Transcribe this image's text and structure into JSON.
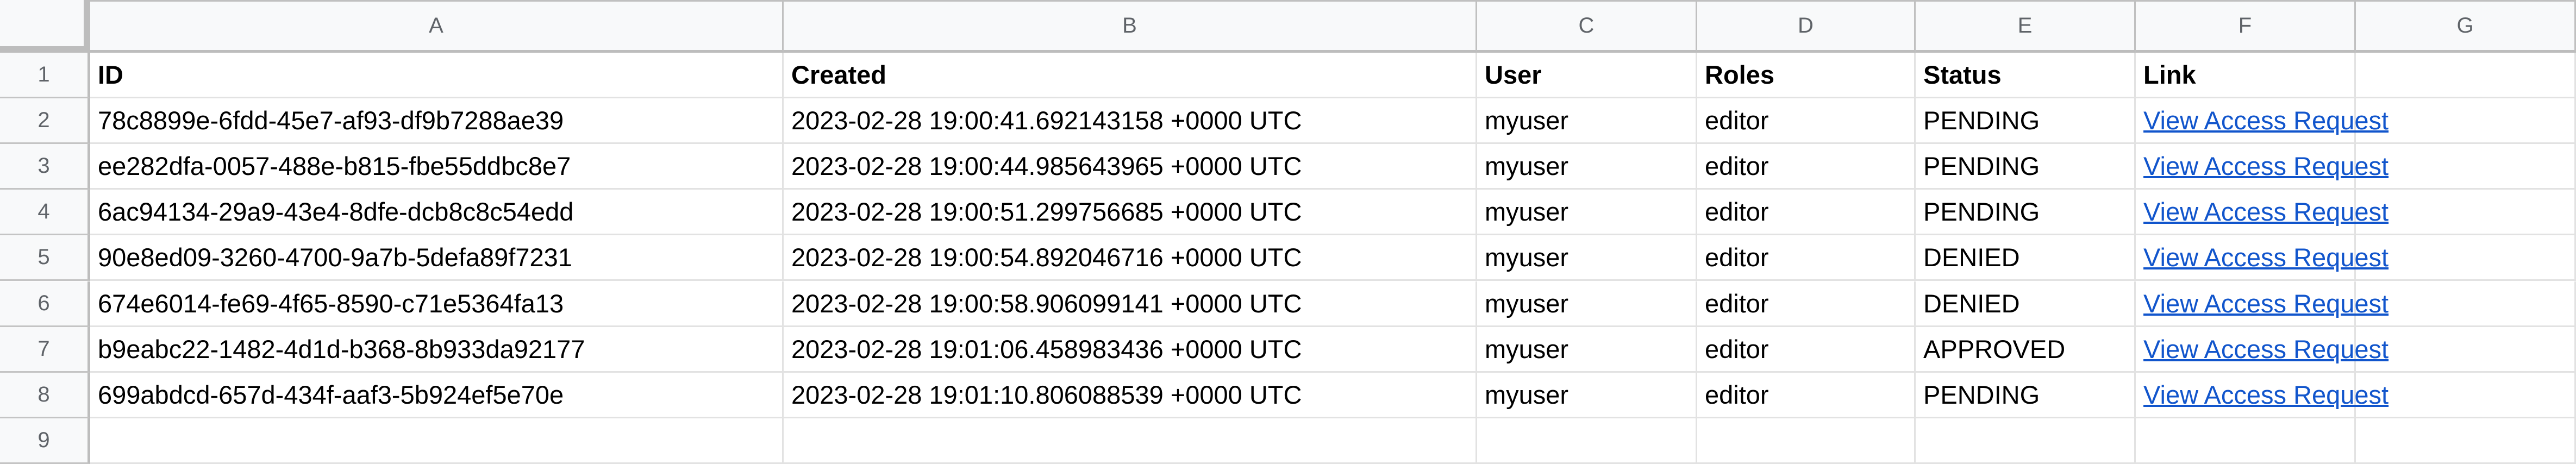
{
  "column_letters": [
    "A",
    "B",
    "C",
    "D",
    "E",
    "F",
    "G"
  ],
  "row_numbers": [
    "1",
    "2",
    "3",
    "4",
    "5",
    "6",
    "7",
    "8",
    "9"
  ],
  "headers": [
    "ID",
    "Created",
    "User",
    "Roles",
    "Status",
    "Link",
    ""
  ],
  "rows": [
    [
      "78c8899e-6fdd-45e7-af93-df9b7288ae39",
      "2023-02-28 19:00:41.692143158 +0000 UTC",
      "myuser",
      "editor",
      "PENDING",
      "View Access Request"
    ],
    [
      "ee282dfa-0057-488e-b815-fbe55ddbc8e7",
      "2023-02-28 19:00:44.985643965 +0000 UTC",
      "myuser",
      "editor",
      "PENDING",
      "View Access Request"
    ],
    [
      "6ac94134-29a9-43e4-8dfe-dcb8c8c54edd",
      "2023-02-28 19:00:51.299756685 +0000 UTC",
      "myuser",
      "editor",
      "PENDING",
      "View Access Request"
    ],
    [
      "90e8ed09-3260-4700-9a7b-5defa89f7231",
      "2023-02-28 19:00:54.892046716 +0000 UTC",
      "myuser",
      "editor",
      "DENIED",
      "View Access Request"
    ],
    [
      "674e6014-fe69-4f65-8590-c71e5364fa13",
      "2023-02-28 19:00:58.906099141 +0000 UTC",
      "myuser",
      "editor",
      "DENIED",
      "View Access Request"
    ],
    [
      "b9eabc22-1482-4d1d-b368-8b933da92177",
      "2023-02-28 19:01:06.458983436 +0000 UTC",
      "myuser",
      "editor",
      "APPROVED",
      "View Access Request"
    ],
    [
      "699abdcd-657d-434f-aaf3-5b924ef5e70e",
      "2023-02-28 19:01:10.806088539 +0000 UTC",
      "myuser",
      "editor",
      "PENDING",
      "View Access Request"
    ]
  ],
  "colors": {
    "link": "#1155cc",
    "header_bg": "#f8f9fa",
    "header_text": "#5f6368"
  }
}
